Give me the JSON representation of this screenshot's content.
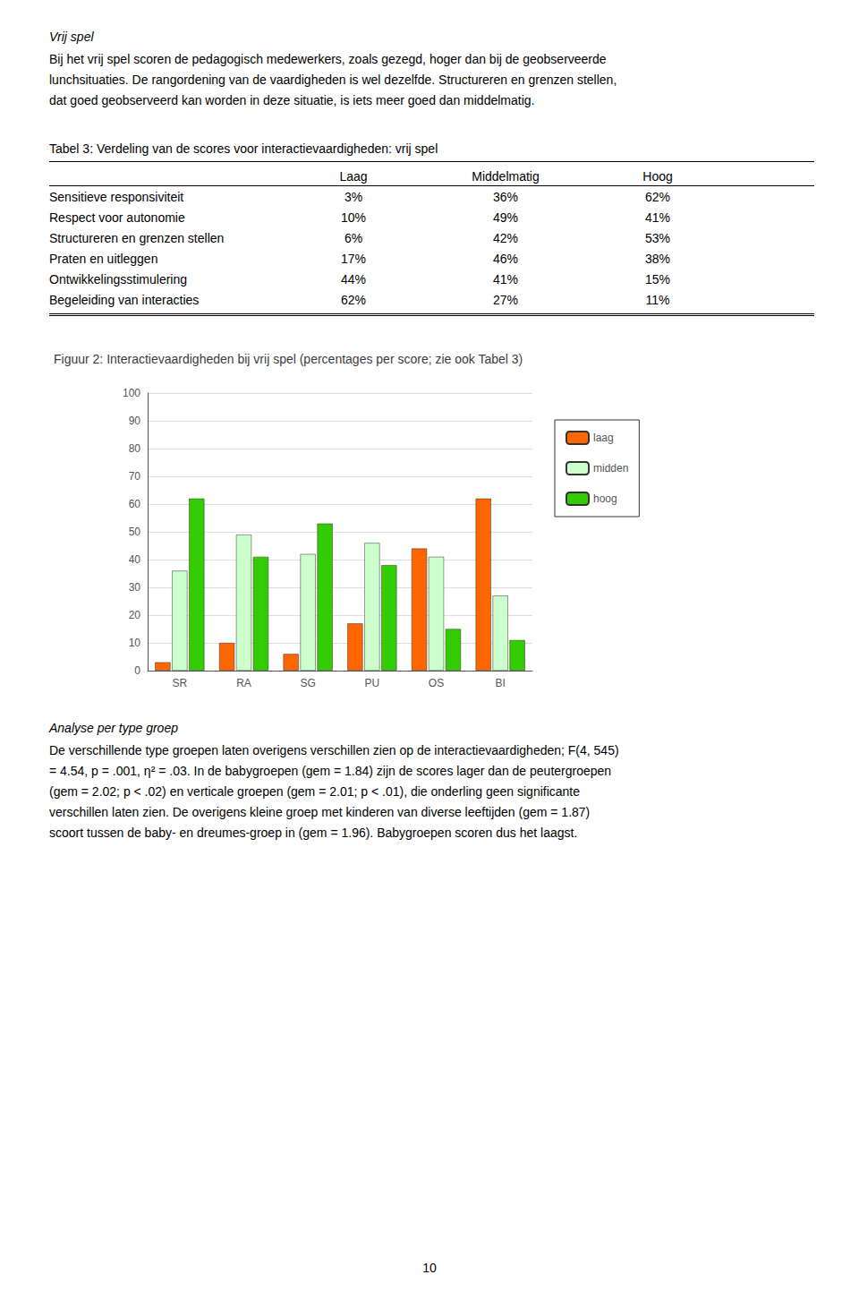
{
  "chart_data": [
    {
      "type": "table",
      "title": "Tabel 3: Verdeling van de scores voor interactievaardigheden: vrij spel",
      "annotations": [
        "Vrij spel",
        "Bij het vrij spel scoren de pedagogisch medewerkers, zoals gezegd, hoger dan bij de geobserveerde",
        "lunchsituaties. De rangordening van de vaardigheden is wel dezelfde. Structureren en grenzen stellen,",
        "dat goed geobserveerd kan worden in deze situatie, is iets meer goed dan middelmatig."
      ],
      "categories": [
        "Sensitieve responsiviteit",
        "Respect voor autonomie",
        "Structureren en grenzen stellen",
        "Praten en uitleggen",
        "Ontwikkelingsstimulering",
        "Begeleiding van interacties"
      ],
      "series": [
        {
          "name": "Laag",
          "values": [
            3,
            10,
            6,
            17,
            44,
            62
          ],
          "value_labels": [
            "3%",
            "10%",
            "6%",
            "17%",
            "44%",
            "62%"
          ]
        },
        {
          "name": "Middelmatig",
          "values": [
            36,
            49,
            42,
            46,
            41,
            27
          ],
          "value_labels": [
            "36%",
            "49%",
            "42%",
            "46%",
            "41%",
            "27%"
          ]
        },
        {
          "name": "Hoog",
          "values": [
            62,
            41,
            53,
            38,
            15,
            11
          ],
          "value_labels": [
            "62%",
            "41%",
            "53%",
            "38%",
            "15%",
            "11%"
          ]
        }
      ],
      "data_labels": true
    },
    {
      "type": "bar",
      "title": "Figuur 2: Interactievaardigheden bij vrij spel (percentages per score; zie ook Tabel 3)",
      "categories": [
        "SR",
        "RA",
        "SG",
        "PU",
        "OS",
        "BI"
      ],
      "series": [
        {
          "name": "laag",
          "color": "#FF6600",
          "values": [
            3,
            10,
            6,
            17,
            44,
            62
          ]
        },
        {
          "name": "midden",
          "color": "#CCFFCC",
          "values": [
            36,
            49,
            42,
            46,
            41,
            27
          ]
        },
        {
          "name": "hoog",
          "color": "#33CC00",
          "values": [
            62,
            41,
            53,
            38,
            15,
            11
          ]
        }
      ],
      "ylim": [
        0,
        100
      ],
      "yticks": [
        0,
        10,
        20,
        30,
        40,
        50,
        60,
        70,
        80,
        90,
        100
      ],
      "grid": true,
      "legend": "right",
      "annotations": [
        "Analyse per type groep",
        "De verschillende type groepen laten overigens verschillen zien op de interactievaardigheden; F(4, 545)",
        "= 4.54, p = .001, η² = .03. In de babygroepen (gem = 1.84) zijn de scores lager dan de peutergroepen",
        "(gem = 2.02; p < .02) en verticale groepen (gem = 2.01; p < .01), die onderling geen significante",
        "verschillen laten zien. De overigens kleine groep met kinderen van diverse leeftijden (gem = 1.87)",
        "scoort tussen de baby- en dreumes-groep in (gem = 1.96). Babygroepen scoren dus het laagst.",
        "10"
      ]
    }
  ]
}
